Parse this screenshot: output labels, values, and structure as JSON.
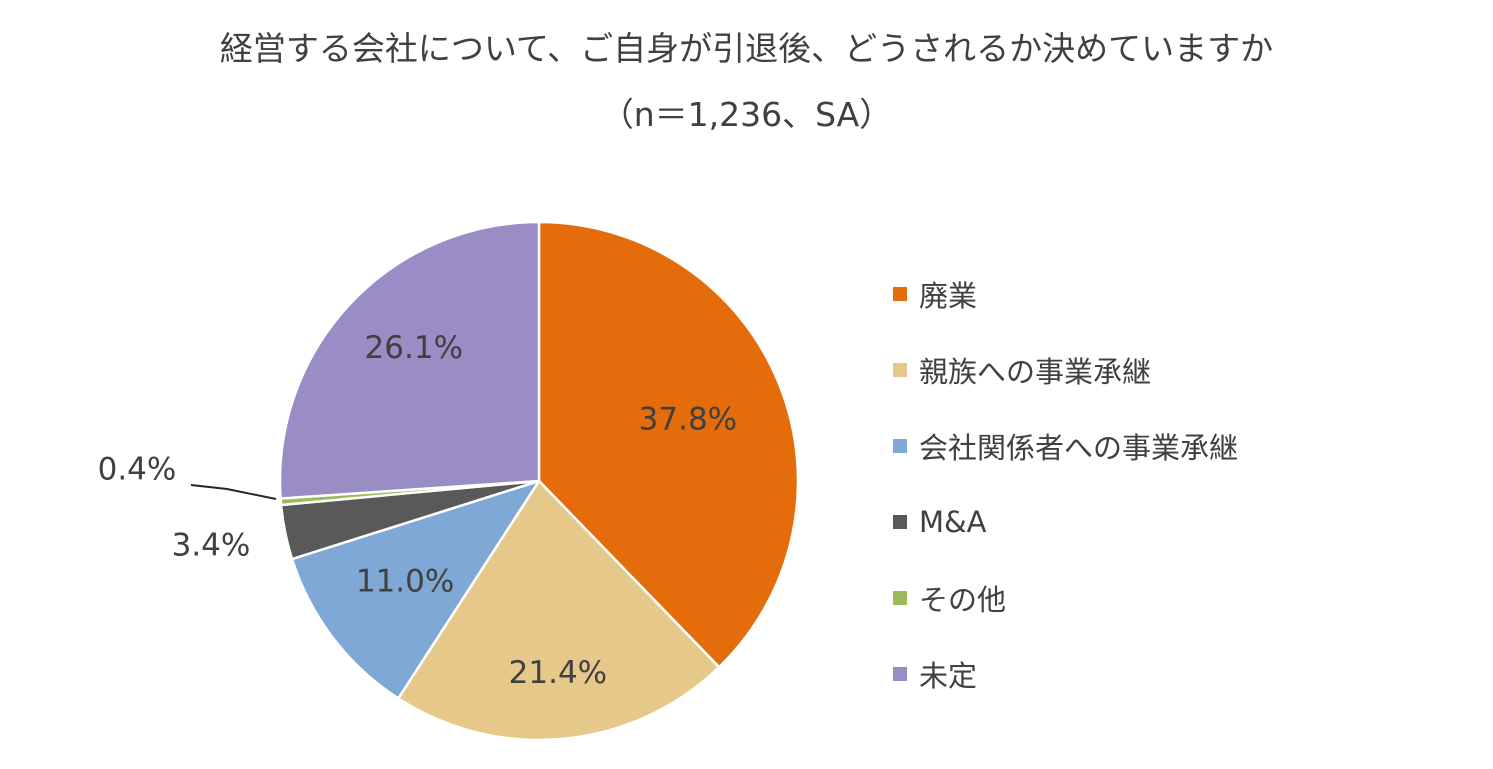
{
  "chart_data": {
    "type": "pie",
    "title": "経営する会社について、ご自身が引退後、どうされるか決めていますか",
    "subtitle": "（n＝1,236、SA）",
    "legend_position": "right",
    "slices": [
      {
        "name": "廃業",
        "value": 37.8,
        "label": "37.8%",
        "color": "#E46C0A"
      },
      {
        "name": "親族への事業承継",
        "value": 21.4,
        "label": "21.4%",
        "color": "#E6C88A"
      },
      {
        "name": "会社関係者への事業承継",
        "value": 11.0,
        "label": "11.0%",
        "color": "#7FA8D6"
      },
      {
        "name": "M&A",
        "value": 3.4,
        "label": "3.4%",
        "color": "#595959"
      },
      {
        "name": "その他",
        "value": 0.4,
        "label": "0.4%",
        "color": "#9BBB59"
      },
      {
        "name": "未定",
        "value": 26.1,
        "label": "26.1%",
        "color": "#9A8CC4"
      }
    ]
  }
}
